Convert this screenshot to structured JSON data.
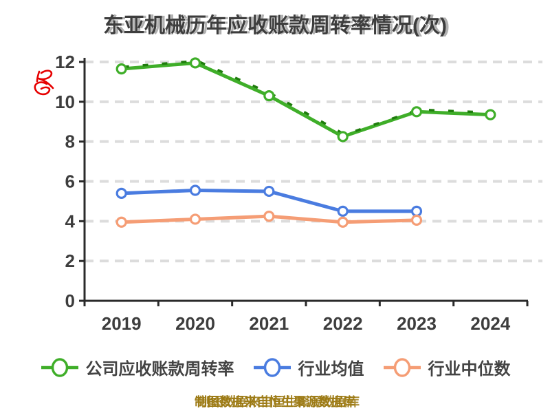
{
  "title": "东亚机械历年应收账款周转率情况(次)",
  "footer": "制图数据来自恒生聚源数据库",
  "colors": {
    "background": "#ffffff",
    "grid": "#dcdcdc",
    "axis": "#2a2a2a",
    "title_text": "#3d3d3d",
    "tick_text": "#3d3d3d",
    "legend_text": "#434343",
    "footer_text": "#9c7a14",
    "red_mark": "#e60000",
    "series_green": "#3fae29",
    "series_blue": "#4a7ce0",
    "series_orange": "#f59d75"
  },
  "chart_data": {
    "type": "line",
    "title": "东亚机械历年应收账款周转率情况(次)",
    "categories": [
      "2019",
      "2020",
      "2021",
      "2022",
      "2023",
      "2024"
    ],
    "series": [
      {
        "name": "公司应收账款周转率",
        "color": "#3fae29",
        "dash_overlay_color": "#1f7d0d",
        "values": [
          11.65,
          11.95,
          10.3,
          8.25,
          9.5,
          9.35
        ]
      },
      {
        "name": "行业均值",
        "color": "#4a7ce0",
        "values": [
          5.4,
          5.55,
          5.5,
          4.5,
          4.5,
          null
        ]
      },
      {
        "name": "行业中位数",
        "color": "#f59d75",
        "values": [
          3.95,
          4.1,
          4.25,
          3.95,
          4.05,
          null
        ]
      }
    ],
    "xlabel": "",
    "ylabel": "",
    "ylim": [
      0,
      12
    ],
    "yticks": [
      0,
      2,
      4,
      6,
      8,
      10,
      12
    ],
    "grid": "horizontal-dashed-light-gray",
    "legend_position": "bottom",
    "marker": "circle-white-filled"
  }
}
